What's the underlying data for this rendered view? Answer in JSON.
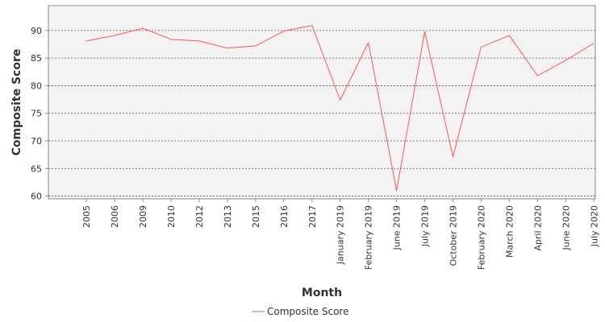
{
  "chart_data": {
    "type": "line",
    "title": "",
    "xlabel": "Month",
    "ylabel": "Composite Score",
    "categories": [
      "2005",
      "2006",
      "2009",
      "2010",
      "2012",
      "2013",
      "2015",
      "2016",
      "2017",
      "January 2019",
      "February 2019",
      "June 2019",
      "July 2019",
      "October 2019",
      "February 2020",
      "March 2020",
      "April 2020",
      "June 2020",
      "July 2020"
    ],
    "series": [
      {
        "name": "Composite Score",
        "color": "#ff5555",
        "values": [
          88.1,
          89.1,
          90.4,
          88.4,
          88.1,
          86.8,
          87.2,
          89.9,
          90.9,
          77.4,
          87.8,
          61.0,
          89.8,
          67.1,
          87.0,
          89.1,
          81.8,
          84.6,
          87.7
        ]
      }
    ],
    "ylim": [
      59.5,
      94.5
    ],
    "yticks": [
      60,
      65,
      70,
      75,
      80,
      85,
      90
    ],
    "grid": true,
    "legend_position": "bottom"
  }
}
